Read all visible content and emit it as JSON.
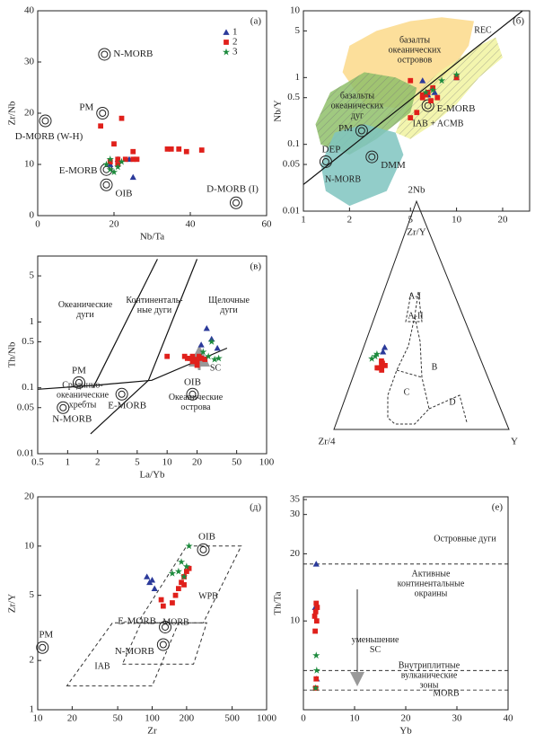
{
  "chart_data": [
    {
      "type": "scatter",
      "panel": "(а)",
      "xlabel": "Nb/Ta",
      "ylabel": "Zr/Nb",
      "xscale": "linear",
      "yscale": "linear",
      "xlim": [
        0,
        60
      ],
      "ylim": [
        0,
        40
      ],
      "xticks": [
        0,
        20,
        40,
        60
      ],
      "yticks": [
        0,
        10,
        20,
        30,
        40
      ],
      "series": [
        {
          "name": "1",
          "marker": "triangle",
          "color": "#2b3a9a",
          "x": [
            19,
            21,
            25,
            24
          ],
          "y": [
            10,
            11,
            7.5,
            11
          ]
        },
        {
          "name": "2",
          "marker": "square",
          "color": "#e0201b",
          "x": [
            16.5,
            20,
            22,
            21,
            23,
            25,
            25,
            34,
            35,
            37,
            39,
            43,
            19,
            21,
            26
          ],
          "y": [
            17.5,
            14,
            19,
            11,
            11,
            12.5,
            11,
            13,
            13,
            13,
            12.5,
            12.8,
            10.5,
            10,
            11
          ]
        },
        {
          "name": "3",
          "marker": "star",
          "color": "#1c8a3c",
          "x": [
            18,
            19,
            20,
            21,
            22,
            19
          ],
          "y": [
            10,
            9,
            8.5,
            9.5,
            10.5,
            11
          ]
        }
      ],
      "refs": {
        "labels": [
          "N-MORB",
          "PM",
          "D-MORB (W-H)",
          "E-MORB",
          "OIB",
          "D-MORB (I)"
        ],
        "x": [
          17.5,
          17,
          2,
          18,
          18,
          52
        ],
        "y": [
          31.5,
          20,
          18.5,
          9,
          6,
          2.5
        ]
      },
      "regions": [],
      "lines": [],
      "notes": []
    },
    {
      "type": "scatter",
      "panel": "(б)",
      "xlabel": "Zr/Y",
      "ylabel": "Nb/Y",
      "xscale": "log",
      "yscale": "log",
      "xlim": [
        1,
        30
      ],
      "ylim": [
        0.01,
        10
      ],
      "xticks": [
        1,
        2,
        5,
        10,
        20
      ],
      "yticks": [
        0.01,
        0.05,
        0.1,
        0.5,
        1,
        5,
        10
      ],
      "series": [
        {
          "marker": "triangle",
          "color": "#2b3a9a",
          "x": [
            6,
            6.5,
            7.2,
            10
          ],
          "y": [
            0.9,
            0.55,
            0.6,
            1
          ]
        },
        {
          "marker": "square",
          "color": "#e0201b",
          "x": [
            5,
            6,
            6.3,
            6.5,
            7,
            7.5,
            6.8,
            5.5,
            5,
            10,
            6
          ],
          "y": [
            0.9,
            0.5,
            0.55,
            0.6,
            0.7,
            0.5,
            0.45,
            0.3,
            0.25,
            1,
            0.55
          ]
        },
        {
          "marker": "star",
          "color": "#1c8a3c",
          "x": [
            8,
            10,
            7,
            6.3
          ],
          "y": [
            0.9,
            1.1,
            0.65,
            0.6
          ]
        }
      ],
      "refs": {
        "labels": [
          "PM",
          "DEP",
          "DMM",
          "E-MORB"
        ],
        "x": [
          2.4,
          1.4,
          2.8,
          6.5
        ],
        "y": [
          0.16,
          0.055,
          0.065,
          0.38
        ]
      },
      "regions": [
        {
          "fill": "#fbd98a",
          "x": [
            1.8,
            2,
            3,
            5,
            8,
            13,
            12,
            9,
            6,
            4,
            2.5
          ],
          "y": [
            1.2,
            3,
            5,
            7,
            8,
            7,
            3,
            1.2,
            0.5,
            0.35,
            0.4
          ]
        },
        {
          "fill": "#f1f3a0",
          "hatch": true,
          "x": [
            4,
            5,
            8,
            14,
            18,
            20,
            14,
            10,
            7,
            5
          ],
          "y": [
            0.15,
            0.5,
            1.3,
            3,
            4,
            2,
            1,
            0.4,
            0.2,
            0.12
          ]
        },
        {
          "fill": "#8fbf6a",
          "hatch": true,
          "x": [
            1.2,
            1.5,
            2.5,
            4,
            5.5,
            5,
            3,
            2,
            1.3
          ],
          "y": [
            0.2,
            0.6,
            1.2,
            1,
            0.7,
            0.3,
            0.12,
            0.07,
            0.1
          ]
        },
        {
          "fill": "#7fc4c0",
          "x": [
            1.3,
            1.6,
            2.5,
            4,
            4.5,
            3.5,
            2,
            1.4
          ],
          "y": [
            0.05,
            0.15,
            0.2,
            0.15,
            0.07,
            0.02,
            0.012,
            0.02
          ]
        }
      ],
      "lines": [
        {
          "x": [
            1,
            27
          ],
          "y": [
            0.025,
            10
          ]
        }
      ],
      "notes": [
        "REC",
        "базалты\nокеанических\nостровов",
        "базальты\nокеанических\nдуг",
        "IAB + ACMB",
        "N-MORB"
      ]
    },
    {
      "type": "scatter",
      "panel": "(в)",
      "xlabel": "La/Yb",
      "ylabel": "Th/Nb",
      "xscale": "log",
      "yscale": "log",
      "xlim": [
        0.5,
        100
      ],
      "ylim": [
        0.01,
        10
      ],
      "xticks": [
        0.5,
        1,
        2,
        5,
        10,
        20,
        50,
        100
      ],
      "yticks": [
        0.01,
        0.05,
        0.1,
        0.5,
        1,
        5
      ],
      "series": [
        {
          "marker": "triangle",
          "color": "#2b3a9a",
          "x": [
            25,
            28,
            32,
            22
          ],
          "y": [
            0.8,
            0.55,
            0.4,
            0.45
          ]
        },
        {
          "marker": "square",
          "color": "#e0201b",
          "x": [
            10,
            15,
            16,
            17,
            18,
            19,
            20,
            21,
            22,
            24,
            18,
            20
          ],
          "y": [
            0.3,
            0.3,
            0.28,
            0.28,
            0.3,
            0.27,
            0.25,
            0.3,
            0.28,
            0.27,
            0.25,
            0.22
          ]
        },
        {
          "marker": "star",
          "color": "#1c8a3c",
          "x": [
            23,
            26,
            30,
            33,
            28
          ],
          "y": [
            0.35,
            0.3,
            0.27,
            0.28,
            0.5
          ]
        }
      ],
      "refs": {
        "labels": [
          "PM",
          "N-MORB",
          "E-MORB",
          "OIB"
        ],
        "x": [
          1.3,
          0.9,
          3.5,
          18
        ],
        "y": [
          0.12,
          0.05,
          0.08,
          0.08
        ]
      },
      "regions": [],
      "lines": [
        {
          "x": [
            0.5,
            2,
            7,
            40
          ],
          "y": [
            0.095,
            0.11,
            0.13,
            0.4
          ]
        },
        {
          "x": [
            1.8,
            8
          ],
          "y": [
            0.1,
            9
          ]
        },
        {
          "x": [
            6.5,
            20
          ],
          "y": [
            0.13,
            9
          ]
        },
        {
          "x": [
            1.7,
            6.5
          ],
          "y": [
            0.02,
            0.13
          ]
        }
      ],
      "notes": [
        "Океанические\nдуги",
        "Континенталь-\nные дуги",
        "Щелочные\nдуги",
        "Срединно-\nокеанические\nхребты",
        "Океанические\nострова",
        "SC"
      ]
    },
    {
      "type": "ternary",
      "corners": [
        "2Nb",
        "Zr/4",
        "Y"
      ],
      "notes": [
        "A-I",
        "A-II",
        "B",
        "C",
        "D"
      ],
      "series": [
        {
          "marker": "triangle",
          "color": "#2b3a9a",
          "nb": [
            36,
            34
          ],
          "zr": [
            52,
            54
          ],
          "y": [
            12,
            12
          ]
        },
        {
          "marker": "square",
          "color": "#e0201b",
          "nb": [
            28,
            27,
            29,
            26,
            28,
            30,
            27
          ],
          "zr": [
            58,
            60,
            57,
            59,
            56,
            57,
            61
          ],
          "y": [
            14,
            13,
            14,
            15,
            16,
            13,
            12
          ]
        },
        {
          "marker": "star",
          "color": "#1c8a3c",
          "nb": [
            32,
            31,
            33
          ],
          "zr": [
            59.5,
            62,
            58
          ],
          "y": [
            8.5,
            7,
            9
          ]
        }
      ]
    },
    {
      "type": "scatter",
      "panel": "(д)",
      "xlabel": "Zr",
      "ylabel": "Zr/Y",
      "xscale": "log",
      "yscale": "log",
      "xlim": [
        10,
        1000
      ],
      "ylim": [
        1,
        20
      ],
      "xticks": [
        10,
        20,
        50,
        100,
        200,
        500,
        1000
      ],
      "yticks": [
        1,
        2,
        5,
        10,
        20
      ],
      "series": [
        {
          "marker": "triangle",
          "color": "#2b3a9a",
          "x": [
            90,
            95,
            100,
            105
          ],
          "y": [
            6.5,
            6,
            6.2,
            5.5
          ]
        },
        {
          "marker": "square",
          "color": "#e0201b",
          "x": [
            120,
            125,
            160,
            170,
            180,
            190,
            200,
            210,
            150,
            190
          ],
          "y": [
            4.7,
            4.3,
            5,
            5.5,
            6,
            6.5,
            7,
            7.3,
            4.5,
            5.8
          ]
        },
        {
          "marker": "star",
          "color": "#1c8a3c",
          "x": [
            210,
            180,
            200,
            170,
            190,
            150
          ],
          "y": [
            10,
            8,
            7.5,
            7,
            6.5,
            6.8
          ]
        }
      ],
      "refs": {
        "labels": [
          "OIB",
          "E-MORB",
          "N-MORB",
          "PM"
        ],
        "x": [
          280,
          130,
          125,
          11
        ],
        "y": [
          9.5,
          3.2,
          2.5,
          2.4
        ]
      },
      "regions": [
        {
          "dashed": true,
          "x": [
            75,
            280,
            600,
            200
          ],
          "y": [
            3.4,
            3.4,
            10,
            10
          ]
        },
        {
          "dashed": true,
          "x": [
            55,
            230,
            300,
            80
          ],
          "y": [
            1.9,
            1.9,
            3.4,
            3.4
          ]
        },
        {
          "dashed": true,
          "x": [
            18,
            100,
            170,
            45
          ],
          "y": [
            1.4,
            1.4,
            3.4,
            3.4
          ]
        }
      ],
      "lines": [],
      "notes": [
        "WPB",
        "MORB",
        "IAB"
      ]
    },
    {
      "type": "scatter",
      "panel": "(е)",
      "xlabel": "Yb",
      "ylabel": "Th/Ta",
      "xscale": "linear",
      "yscale": "log",
      "xlim": [
        0,
        40
      ],
      "ylim": [
        4,
        36
      ],
      "xticks": [
        0,
        10,
        20,
        30,
        40
      ],
      "yticks": [
        10,
        20,
        30,
        35
      ],
      "series": [
        {
          "marker": "triangle",
          "color": "#2b3a9a",
          "x": [
            2.5,
            2.3,
            2.6
          ],
          "y": [
            18,
            11.5,
            5.5
          ]
        },
        {
          "marker": "square",
          "color": "#e0201b",
          "x": [
            2.4,
            2.5,
            2.3,
            2.6,
            2.4,
            2.5,
            2.7,
            2.2
          ],
          "y": [
            5,
            5.5,
            9,
            10,
            11,
            12,
            11.5,
            10.5
          ]
        },
        {
          "marker": "star",
          "color": "#1c8a3c",
          "x": [
            2.6,
            2.4,
            2.5
          ],
          "y": [
            6,
            5,
            7
          ]
        }
      ],
      "regions": [],
      "lines": [
        {
          "dashed": true,
          "x": [
            0,
            40
          ],
          "y": [
            18,
            18
          ]
        },
        {
          "dashed": true,
          "x": [
            0,
            40
          ],
          "y": [
            6,
            6
          ]
        },
        {
          "dashed": true,
          "x": [
            0,
            40
          ],
          "y": [
            4.9,
            4.9
          ]
        }
      ],
      "notes": [
        "Островные дуги",
        "Активные\nконтинентальные\nокраины",
        "Внутриплитные\nвулканические\nзоны",
        "MORB",
        "уменьшение\nSC"
      ]
    }
  ]
}
